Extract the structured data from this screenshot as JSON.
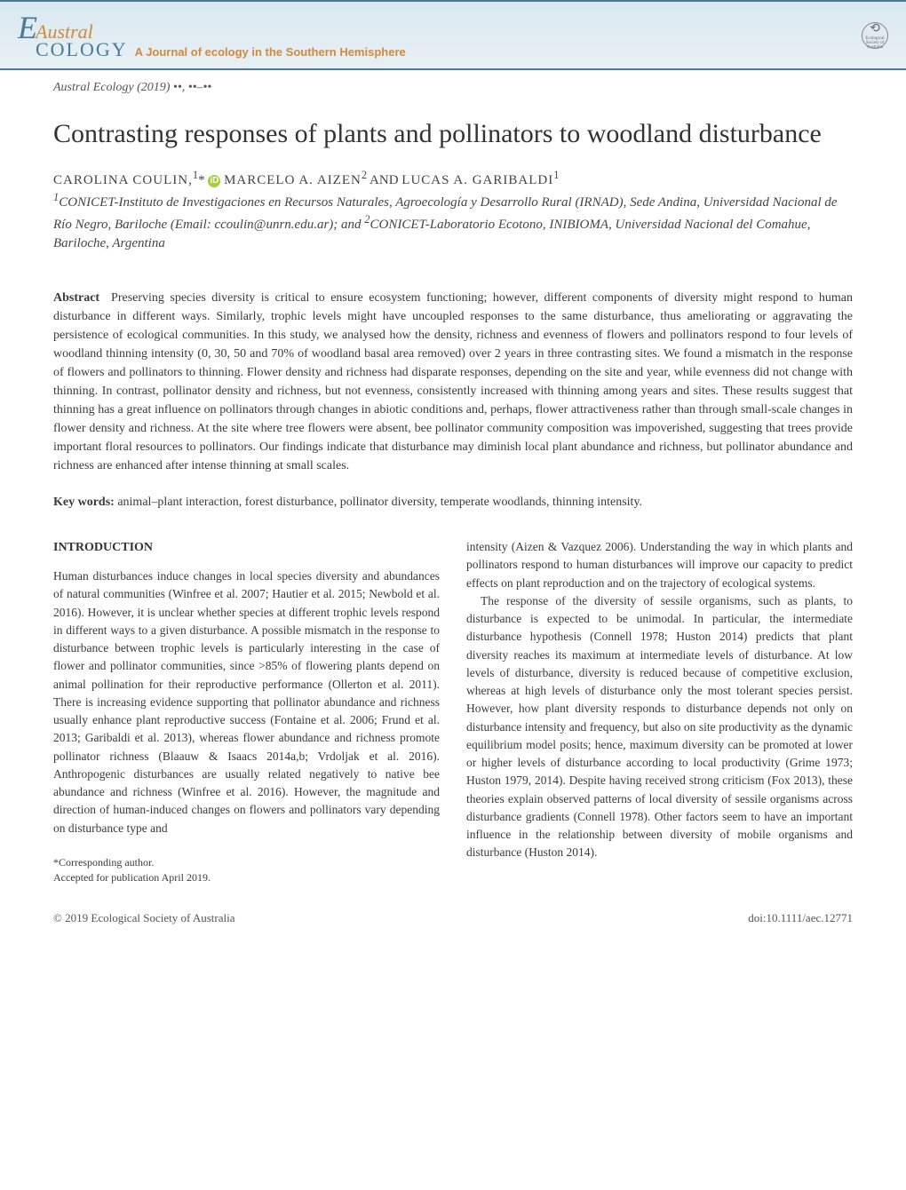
{
  "journal": {
    "logo_e": "E",
    "logo_austral": "Austral",
    "logo_ecology": "COLOGY",
    "subtitle": "A Journal of ecology in the Southern Hemisphere",
    "society": "Ecological Society of Australia",
    "header_bg_color": "#d9e8f0",
    "header_border_color": "#4a7a9a",
    "austral_color": "#d08a3a",
    "ecology_color": "#4a7a9a"
  },
  "citation": "Austral Ecology (2019) ••, ••–••",
  "title": "Contrasting responses of plants and pollinators to woodland disturbance",
  "authors": {
    "author1": "CAROLINA COULIN,",
    "author1_sup": "1",
    "author1_star": "*",
    "author2": "MARCELO A. AIZEN",
    "author2_sup": "2",
    "and": "AND",
    "author3": "LUCAS A. GARIBALDI",
    "author3_sup": "1"
  },
  "affiliations": {
    "aff1_sup": "1",
    "aff1": "CONICET-Instituto de Investigaciones en Recursos Naturales, Agroecología y Desarrollo Rural (IRNAD), Sede Andina, Universidad Nacional de Río Negro, Bariloche  (Email: ccoulin@unrn.edu.ar); and ",
    "aff2_sup": "2",
    "aff2": "CONICET-Laboratorio Ecotono, INIBIOMA, Universidad Nacional del Comahue, Bariloche, Argentina"
  },
  "abstract": {
    "label": "Abstract",
    "text": "Preserving species diversity is critical to ensure ecosystem functioning; however, different components of diversity might respond to human disturbance in different ways. Similarly, trophic levels might have uncoupled responses to the same disturbance, thus ameliorating or aggravating the persistence of ecological communities. In this study, we analysed how the density, richness and evenness of flowers and pollinators respond to four levels of woodland thinning intensity (0, 30, 50 and 70% of woodland basal area removed) over 2 years in three contrasting sites. We found a mismatch in the response of flowers and pollinators to thinning. Flower density and richness had disparate responses, depending on the site and year, while evenness did not change with thinning. In contrast, pollinator density and richness, but not evenness, consistently increased with thinning among years and sites. These results suggest that thinning has a great influence on pollinators through changes in abiotic conditions and, perhaps, flower attractiveness rather than through small-scale changes in flower density and richness. At the site where tree flowers were absent, bee pollinator community composition was impoverished, suggesting that trees provide important floral resources to pollinators. Our findings indicate that disturbance may diminish local plant abundance and richness, but pollinator abundance and richness are enhanced after intense thinning at small scales."
  },
  "keywords": {
    "label": "Key words:",
    "text": "animal–plant interaction, forest disturbance, pollinator diversity, temperate woodlands, thinning intensity."
  },
  "introduction": {
    "heading": "INTRODUCTION",
    "left_p1": "Human disturbances induce changes in local species diversity and abundances of natural communities (Winfree et al. 2007; Hautier et al. 2015; Newbold et al. 2016). However, it is unclear whether species at different trophic levels respond in different ways to a given disturbance. A possible mismatch in the response to disturbance between trophic levels is particularly interesting in the case of flower and pollinator communities, since >85% of flowering plants depend on animal pollination for their reproductive performance (Ollerton et al. 2011). There is increasing evidence supporting that pollinator abundance and richness usually enhance plant reproductive success (Fontaine et al. 2006; Frund et al. 2013; Garibaldi et al. 2013), whereas flower abundance and richness promote pollinator richness (Blaauw & Isaacs 2014a,b; Vrdoljak et al. 2016). Anthropogenic disturbances are usually related negatively to native bee abundance and richness (Winfree et al. 2016). However, the magnitude and direction of human-induced changes on flowers and pollinators vary depending on disturbance type and",
    "right_p1": "intensity (Aizen & Vazquez 2006). Understanding the way in which plants and pollinators respond to human disturbances will improve our capacity to predict effects on plant reproduction and on the trajectory of ecological systems.",
    "right_p2": "The response of the diversity of sessile organisms, such as plants, to disturbance is expected to be unimodal. In particular, the intermediate disturbance hypothesis (Connell 1978; Huston 2014) predicts that plant diversity reaches its maximum at intermediate levels of disturbance. At low levels of disturbance, diversity is reduced because of competitive exclusion, whereas at high levels of disturbance only the most tolerant species persist. However, how plant diversity responds to disturbance depends not only on disturbance intensity and frequency, but also on site productivity as the dynamic equilibrium model posits; hence, maximum diversity can be promoted at lower or higher levels of disturbance according to local productivity (Grime 1973; Huston 1979, 2014). Despite having received strong criticism (Fox 2013), these theories explain observed patterns of local diversity of sessile organisms across disturbance gradients (Connell 1978). Other factors seem to have an important influence in the relationship between diversity of mobile organisms and disturbance (Huston 2014)."
  },
  "footnote": {
    "corresponding": "*Corresponding author.",
    "accepted": "Accepted for publication April 2019."
  },
  "footer": {
    "left": "© 2019 Ecological Society of Australia",
    "right": "doi:10.1111/aec.12771"
  }
}
